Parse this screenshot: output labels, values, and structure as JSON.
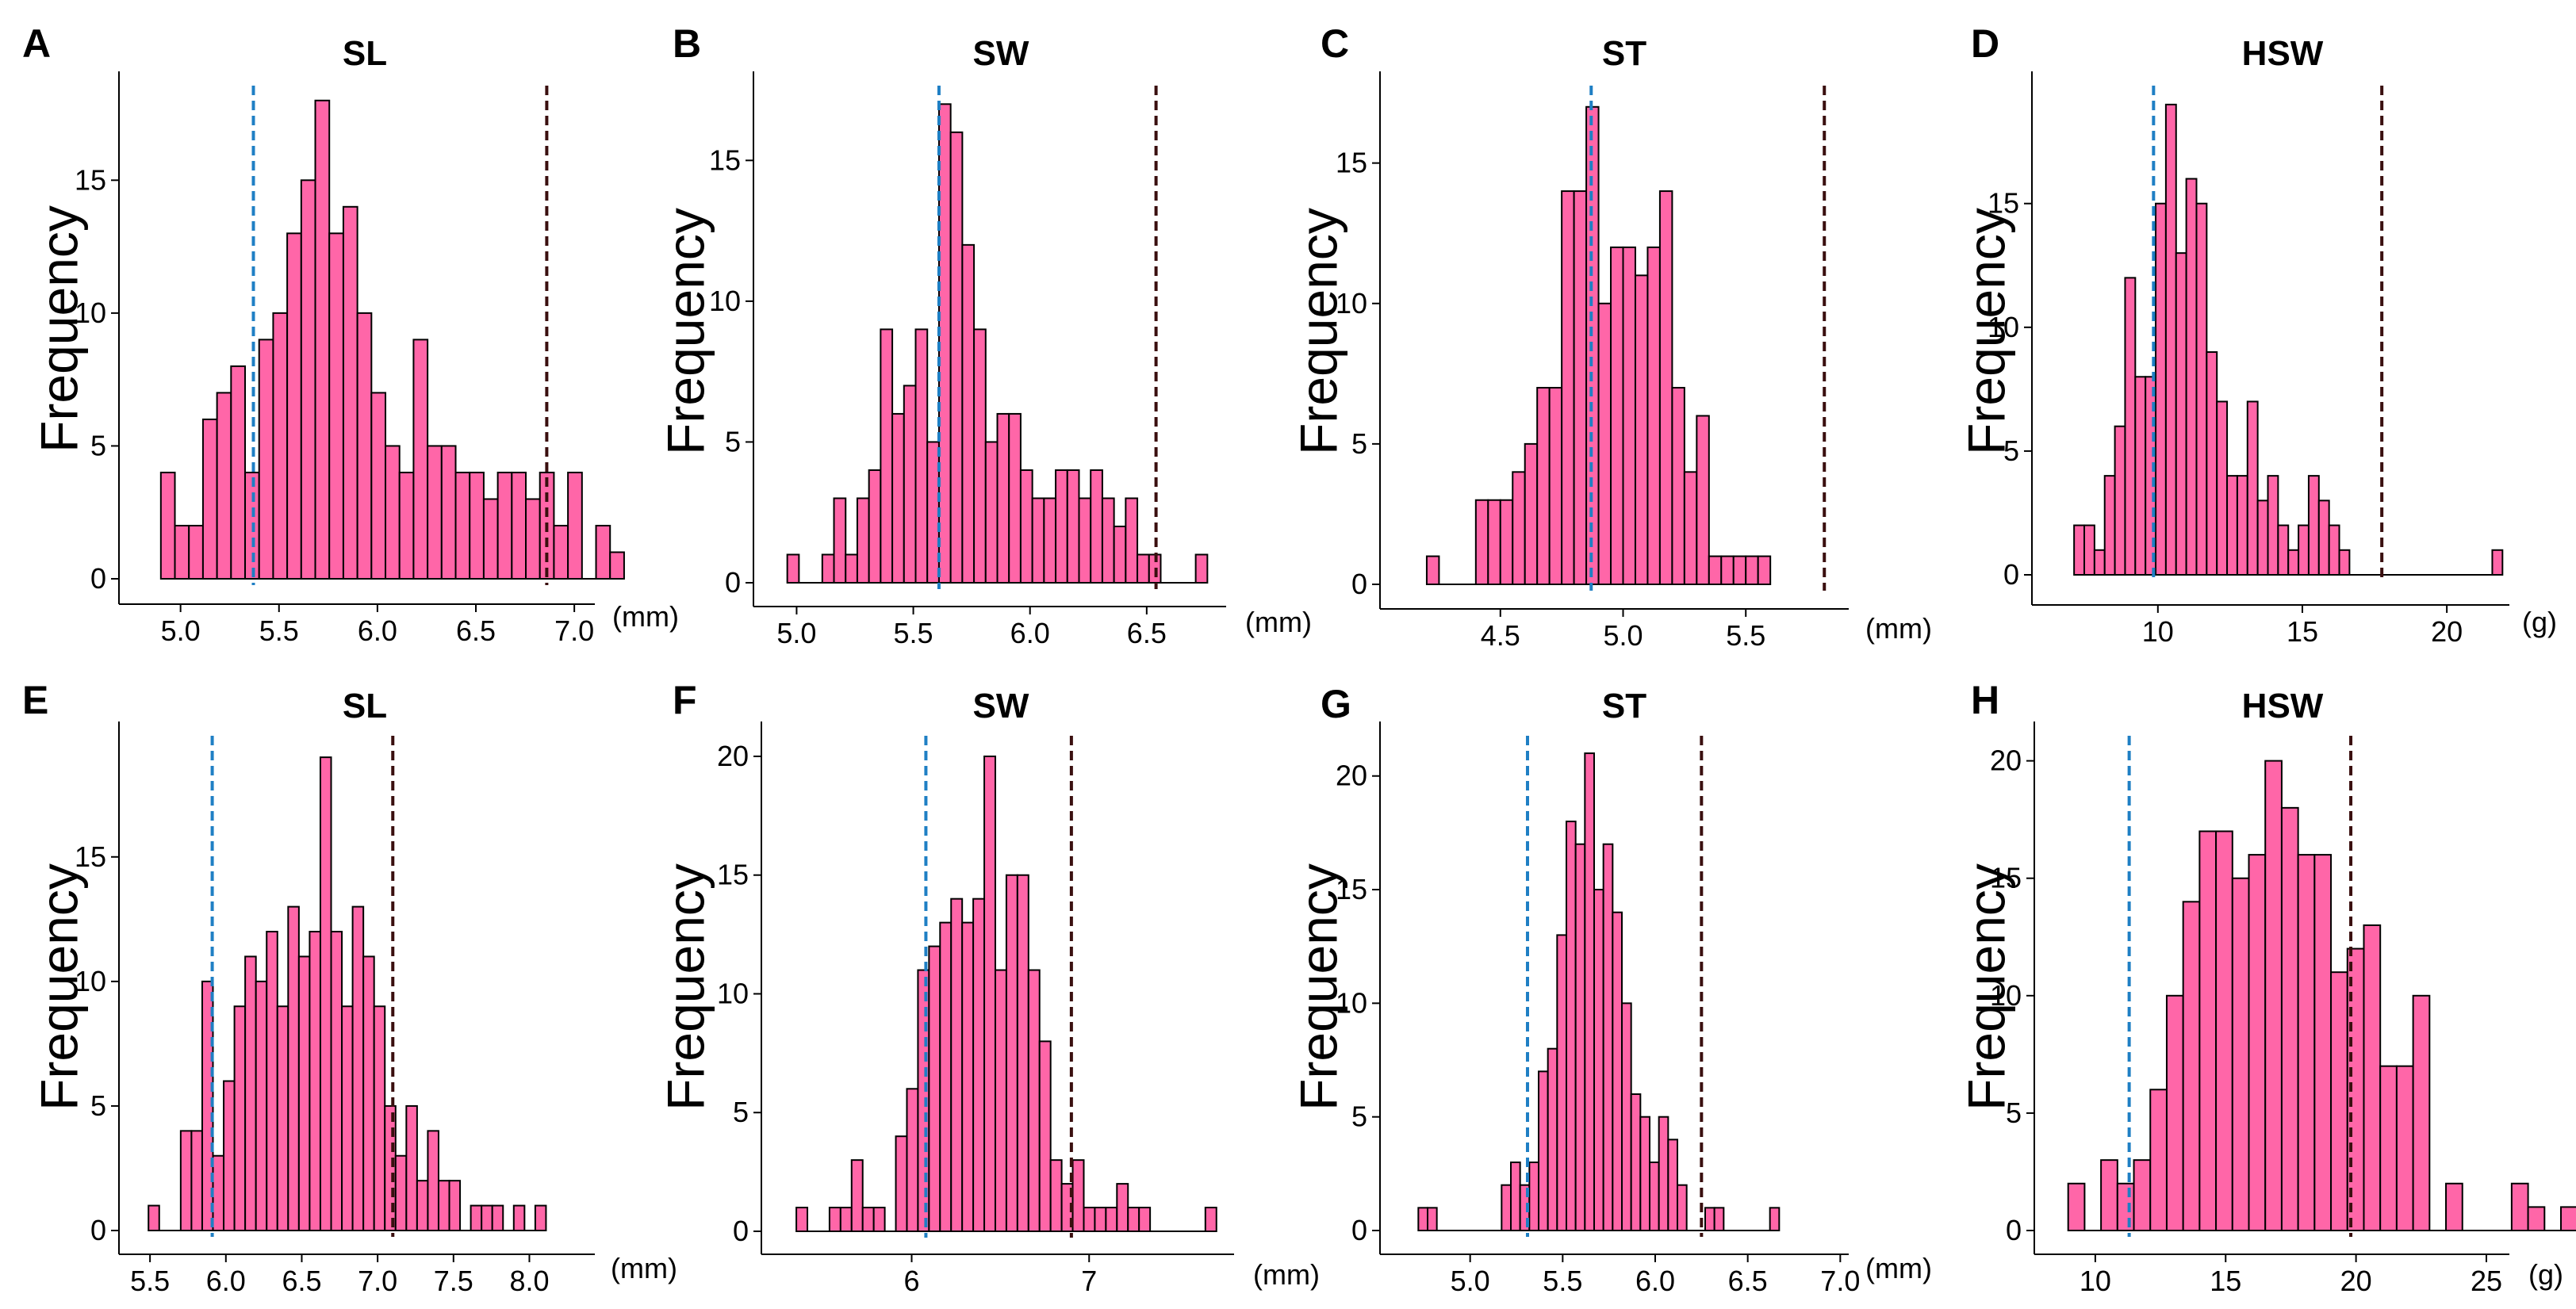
{
  "chart_data": [
    {
      "panel": "A",
      "title": "SL",
      "type": "bar",
      "ylabel": "Frequency",
      "unit": "(mm)",
      "bin_start": 4.9,
      "bin_width": 0.0713,
      "counts": [
        4,
        2,
        2,
        6,
        7,
        8,
        4,
        9,
        10,
        13,
        15,
        18,
        13,
        14,
        10,
        7,
        5,
        4,
        9,
        5,
        5,
        4,
        4,
        3,
        4,
        4,
        3,
        4,
        2,
        4,
        0,
        2,
        1
      ],
      "xlim": [
        4.8,
        7.08
      ],
      "ylim": [
        0,
        18.5
      ],
      "xticks": [
        5.0,
        5.5,
        6.0,
        6.5,
        7.0
      ],
      "xtick_labels": [
        "5.0",
        "5.5",
        "6.0",
        "6.5",
        "7.0"
      ],
      "yticks": [
        0,
        5,
        10,
        15
      ],
      "ytick_labels": [
        "0",
        "5",
        "10",
        "15"
      ],
      "ref_lines": [
        {
          "value": 5.37,
          "color": "#1f7fc4"
        },
        {
          "value": 6.86,
          "color": "#3a0f0f"
        }
      ]
    },
    {
      "panel": "B",
      "title": "SW",
      "type": "bar",
      "ylabel": "Frequency",
      "unit": "(mm)",
      "bin_start": 4.96,
      "bin_width": 0.05,
      "counts": [
        1,
        0,
        0,
        1,
        3,
        1,
        3,
        4,
        9,
        6,
        7,
        9,
        5,
        17,
        16,
        12,
        9,
        5,
        6,
        6,
        4,
        3,
        3,
        4,
        4,
        3,
        4,
        3,
        2,
        3,
        1,
        1,
        0,
        0,
        0,
        1
      ],
      "xlim": [
        4.9,
        6.82
      ],
      "ylim": [
        0,
        17.6
      ],
      "xticks": [
        5.0,
        5.5,
        6.0,
        6.5
      ],
      "xtick_labels": [
        "5.0",
        "5.5",
        "6.0",
        "6.5"
      ],
      "yticks": [
        0,
        5,
        10,
        15
      ],
      "ytick_labels": [
        "0",
        "5",
        "10",
        "15"
      ],
      "ref_lines": [
        {
          "value": 5.61,
          "color": "#1f7fc4"
        },
        {
          "value": 6.54,
          "color": "#3a0f0f"
        }
      ]
    },
    {
      "panel": "C",
      "title": "ST",
      "type": "bar",
      "ylabel": "Frequency",
      "unit": "(mm)",
      "bin_start": 4.2,
      "bin_width": 0.05,
      "counts": [
        1,
        0,
        0,
        0,
        3,
        3,
        3,
        4,
        5,
        7,
        7,
        14,
        14,
        17,
        10,
        12,
        12,
        11,
        12,
        14,
        7,
        4,
        6,
        1,
        1,
        1,
        1,
        1
      ],
      "xlim": [
        4.1,
        5.9
      ],
      "ylim": [
        0,
        17.7
      ],
      "xticks": [
        4.5,
        5.0,
        5.5
      ],
      "xtick_labels": [
        "4.5",
        "5.0",
        "5.5"
      ],
      "yticks": [
        0,
        5,
        10,
        15
      ],
      "ytick_labels": [
        "0",
        "5",
        "10",
        "15"
      ],
      "ref_lines": [
        {
          "value": 4.87,
          "color": "#1f7fc4"
        },
        {
          "value": 5.82,
          "color": "#3a0f0f"
        }
      ]
    },
    {
      "panel": "D",
      "title": "HSW",
      "type": "bar",
      "ylabel": "Frequency",
      "unit": "(g)",
      "bin_start": 7.1,
      "bin_width": 0.353,
      "counts": [
        2,
        2,
        1,
        4,
        6,
        12,
        8,
        8,
        15,
        19,
        13,
        16,
        15,
        9,
        7,
        4,
        4,
        7,
        3,
        4,
        2,
        1,
        2,
        4,
        3,
        2,
        1,
        0,
        0,
        0,
        0,
        0,
        0,
        0,
        0,
        0,
        0,
        0,
        0,
        0,
        0,
        1
      ],
      "xlim": [
        6.3,
        22.0
      ],
      "ylim": [
        0,
        19.7
      ],
      "xticks": [
        10,
        15,
        20
      ],
      "xtick_labels": [
        "10",
        "15",
        "20"
      ],
      "yticks": [
        0,
        5,
        10,
        15
      ],
      "ytick_labels": [
        "0",
        "5",
        "10",
        "15"
      ],
      "ref_lines": [
        {
          "value": 9.85,
          "color": "#1f7fc4"
        },
        {
          "value": 17.75,
          "color": "#3a0f0f"
        }
      ]
    },
    {
      "panel": "E",
      "title": "SL",
      "type": "bar",
      "ylabel": "Frequency",
      "unit": "(mm)",
      "bin_start": 5.49,
      "bin_width": 0.0708,
      "counts": [
        1,
        0,
        0,
        4,
        4,
        10,
        3,
        6,
        9,
        11,
        10,
        12,
        9,
        13,
        11,
        12,
        19,
        12,
        9,
        13,
        11,
        9,
        5,
        3,
        5,
        2,
        4,
        2,
        2,
        0,
        1,
        1,
        1,
        0,
        1,
        0,
        1
      ],
      "xlim": [
        5.4,
        8.4
      ],
      "ylim": [
        0,
        19.8
      ],
      "xticks": [
        5.5,
        6.0,
        6.5,
        7.0,
        7.5,
        8.0
      ],
      "xtick_labels": [
        "5.5",
        "6.0",
        "6.5",
        "7.0",
        "7.5",
        "8.0"
      ],
      "yticks": [
        0,
        5,
        10,
        15
      ],
      "ytick_labels": [
        "0",
        "5",
        "10",
        "15"
      ],
      "ref_lines": [
        {
          "value": 5.91,
          "color": "#1f7fc4"
        },
        {
          "value": 7.1,
          "color": "#3a0f0f"
        }
      ]
    },
    {
      "panel": "F",
      "title": "SW",
      "type": "bar",
      "ylabel": "Frequency",
      "unit": "(mm)",
      "bin_start": 5.35,
      "bin_width": 0.0623,
      "counts": [
        1,
        0,
        0,
        1,
        1,
        3,
        1,
        1,
        0,
        4,
        6,
        11,
        12,
        13,
        14,
        13,
        14,
        20,
        11,
        15,
        15,
        11,
        8,
        3,
        2,
        3,
        1,
        1,
        1,
        2,
        1,
        1,
        0,
        0,
        0,
        0,
        0,
        1
      ],
      "xlim": [
        5.22,
        7.79
      ],
      "ylim": [
        0,
        20.8
      ],
      "xticks": [
        6,
        7
      ],
      "xtick_labels": [
        "6",
        "7"
      ],
      "yticks": [
        0,
        5,
        10,
        15,
        20
      ],
      "ytick_labels": [
        "0",
        "5",
        "10",
        "15",
        "20"
      ],
      "ref_lines": [
        {
          "value": 6.08,
          "color": "#1f7fc4"
        },
        {
          "value": 6.9,
          "color": "#3a0f0f"
        }
      ]
    },
    {
      "panel": "G",
      "title": "ST",
      "type": "bar",
      "ylabel": "Frequency",
      "unit": "(mm)",
      "bin_start": 4.72,
      "bin_width": 0.05,
      "counts": [
        1,
        1,
        0,
        0,
        0,
        0,
        0,
        0,
        0,
        2,
        3,
        2,
        3,
        7,
        8,
        13,
        18,
        17,
        21,
        15,
        17,
        14,
        10,
        6,
        5,
        3,
        5,
        4,
        2,
        0,
        0,
        1,
        1,
        0,
        0,
        0,
        0,
        0,
        1
      ],
      "xlim": [
        4.62,
        7.02
      ],
      "ylim": [
        0,
        21.7
      ],
      "xticks": [
        5.0,
        5.5,
        6.0,
        6.5,
        7.0
      ],
      "xtick_labels": [
        "5.0",
        "5.5",
        "6.0",
        "6.5",
        "7.0"
      ],
      "yticks": [
        0,
        5,
        10,
        15,
        20
      ],
      "ytick_labels": [
        "0",
        "5",
        "10",
        "15",
        "20"
      ],
      "ref_lines": [
        {
          "value": 5.31,
          "color": "#1f7fc4"
        },
        {
          "value": 6.25,
          "color": "#3a0f0f"
        }
      ]
    },
    {
      "panel": "H",
      "title": "HSW",
      "type": "bar",
      "ylabel": "Frequency",
      "unit": "(g)",
      "bin_start": 8.96,
      "bin_width": 0.63,
      "counts": [
        2,
        0,
        3,
        2,
        3,
        6,
        10,
        14,
        17,
        17,
        15,
        16,
        20,
        18,
        16,
        16,
        11,
        12,
        13,
        7,
        7,
        10,
        0,
        2,
        0,
        0,
        0,
        2,
        1,
        0,
        1
      ],
      "xlim": [
        8.3,
        25.7
      ],
      "ylim": [
        0,
        21.0
      ],
      "xticks": [
        10,
        15,
        20,
        25
      ],
      "xtick_labels": [
        "10",
        "15",
        "20",
        "25"
      ],
      "yticks": [
        0,
        5,
        10,
        15,
        20
      ],
      "ytick_labels": [
        "0",
        "5",
        "10",
        "15",
        "20"
      ],
      "ref_lines": [
        {
          "value": 11.3,
          "color": "#1f7fc4"
        },
        {
          "value": 19.8,
          "color": "#3a0f0f"
        }
      ]
    }
  ]
}
